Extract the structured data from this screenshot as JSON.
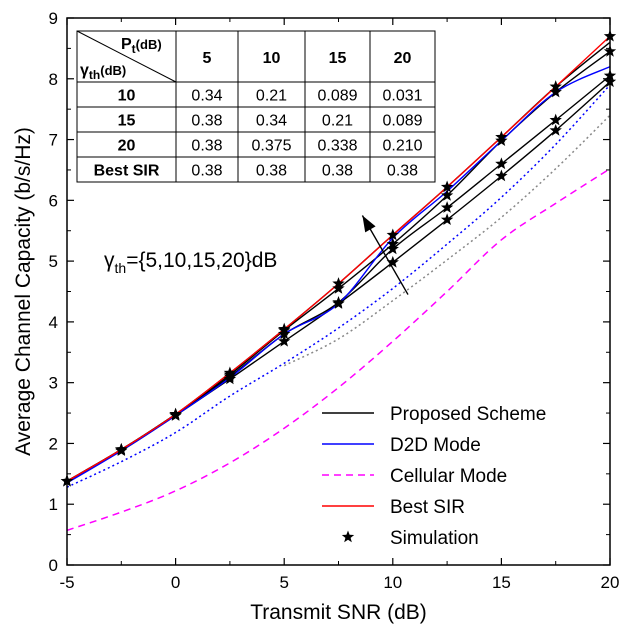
{
  "chart_data": {
    "type": "line",
    "xlabel": "Transmit SNR (dB)",
    "ylabel": "Average Channel Capacity (b/s/Hz)",
    "xlim": [
      -5,
      20
    ],
    "ylim": [
      0,
      9
    ],
    "xticks": [
      "-5",
      "0",
      "5",
      "10",
      "15",
      "20"
    ],
    "yticks": [
      "0",
      "1",
      "2",
      "3",
      "4",
      "5",
      "6",
      "7",
      "8",
      "9"
    ],
    "grid": false,
    "legend_position": "bottom-right",
    "legend": [
      "Proposed Scheme",
      "D2D Mode",
      "Cellular Mode",
      "Best SIR",
      "Simulation"
    ],
    "x": [
      -5,
      -2.5,
      0,
      2.5,
      5,
      7.5,
      10,
      12.5,
      15,
      17.5,
      20
    ],
    "series": [
      {
        "name": "Best SIR",
        "color": "#ff0000",
        "style": "solid",
        "values": [
          1.38,
          1.9,
          2.48,
          3.16,
          3.88,
          4.63,
          5.43,
          6.22,
          7.04,
          7.87,
          8.7
        ]
      },
      {
        "name": "D2D Mode",
        "color": "#0000ff",
        "style": "solid",
        "values": [
          1.35,
          1.88,
          2.46,
          3.08,
          3.8,
          4.3,
          5.38,
          6.15,
          6.98,
          7.78,
          8.2
        ]
      },
      {
        "name": "Cellular Mode",
        "color": "#ff00ff",
        "style": "dashed",
        "values": [
          0.57,
          0.87,
          1.22,
          1.68,
          2.25,
          2.92,
          3.68,
          4.5,
          5.35,
          5.95,
          6.52
        ]
      },
      {
        "color": "#000000",
        "style": "solid",
        "group": "Proposed Scheme",
        "values": [
          1.38,
          1.9,
          2.48,
          3.16,
          3.88,
          4.63,
          5.43,
          6.22,
          7.04,
          7.87,
          8.6
        ]
      },
      {
        "color": "#000000",
        "style": "solid",
        "group": "Proposed Scheme",
        "values": [
          1.38,
          1.9,
          2.48,
          3.13,
          3.86,
          4.55,
          5.28,
          6.08,
          6.98,
          7.78,
          8.45
        ]
      },
      {
        "color": "#000000",
        "style": "solid",
        "group": "Proposed Scheme",
        "values": [
          1.38,
          1.9,
          2.48,
          3.1,
          3.8,
          4.32,
          5.2,
          5.88,
          6.6,
          7.32,
          8.05
        ]
      },
      {
        "color": "#000000",
        "style": "solid",
        "group": "Proposed Scheme",
        "values": [
          1.38,
          1.88,
          2.46,
          3.06,
          3.68,
          4.3,
          4.98,
          5.68,
          6.4,
          7.15,
          7.95
        ]
      },
      {
        "color": "#0000ff",
        "style": "dotted",
        "values": [
          1.28,
          1.7,
          2.18,
          2.78,
          3.32,
          3.9,
          4.55,
          5.28,
          6.05,
          6.92,
          7.9
        ]
      },
      {
        "color": "#888888",
        "style": "dotted",
        "values": [
          null,
          null,
          null,
          null,
          3.28,
          3.72,
          4.35,
          5.02,
          5.72,
          6.52,
          7.4
        ]
      }
    ],
    "simulation": {
      "x": [
        -5,
        -2.5,
        0,
        2.5,
        5,
        7.5,
        10,
        12.5,
        15,
        17.5,
        20
      ],
      "curves": [
        [
          1.38,
          1.9,
          2.48,
          3.16,
          3.88,
          4.63,
          5.43,
          6.22,
          7.04,
          7.87,
          8.7
        ],
        [
          1.38,
          1.9,
          2.48,
          3.13,
          3.86,
          4.55,
          5.28,
          6.08,
          6.98,
          7.78,
          8.45
        ],
        [
          1.38,
          1.9,
          2.46,
          3.1,
          3.8,
          4.32,
          5.2,
          5.88,
          6.6,
          7.32,
          8.05
        ],
        [
          1.38,
          1.88,
          2.46,
          3.06,
          3.68,
          4.3,
          4.98,
          5.68,
          6.4,
          7.15,
          7.95
        ]
      ]
    },
    "annotation": {
      "text_main": "γ",
      "text_sub": "th",
      "text_rest": "={5,10,15,20}dB",
      "arrow_from": [
        10.7,
        4.45
      ],
      "arrow_to": [
        8.6,
        5.75
      ]
    },
    "table": {
      "corner_top_main": "P",
      "corner_top_sub": "t",
      "corner_top_unit": "(dB)",
      "corner_bottom_main": "γ",
      "corner_bottom_sub": "th",
      "corner_bottom_unit": "(dB)",
      "columns": [
        "5",
        "10",
        "15",
        "20"
      ],
      "rows": [
        {
          "label": "10",
          "values": [
            "0.34",
            "0.21",
            "0.089",
            "0.031"
          ]
        },
        {
          "label": "15",
          "values": [
            "0.38",
            "0.34",
            "0.21",
            "0.089"
          ]
        },
        {
          "label": "20",
          "values": [
            "0.38",
            "0.375",
            "0.338",
            "0.210"
          ]
        },
        {
          "label": "Best SIR",
          "values": [
            "0.38",
            "0.38",
            "0.38",
            "0.38"
          ]
        }
      ]
    }
  }
}
